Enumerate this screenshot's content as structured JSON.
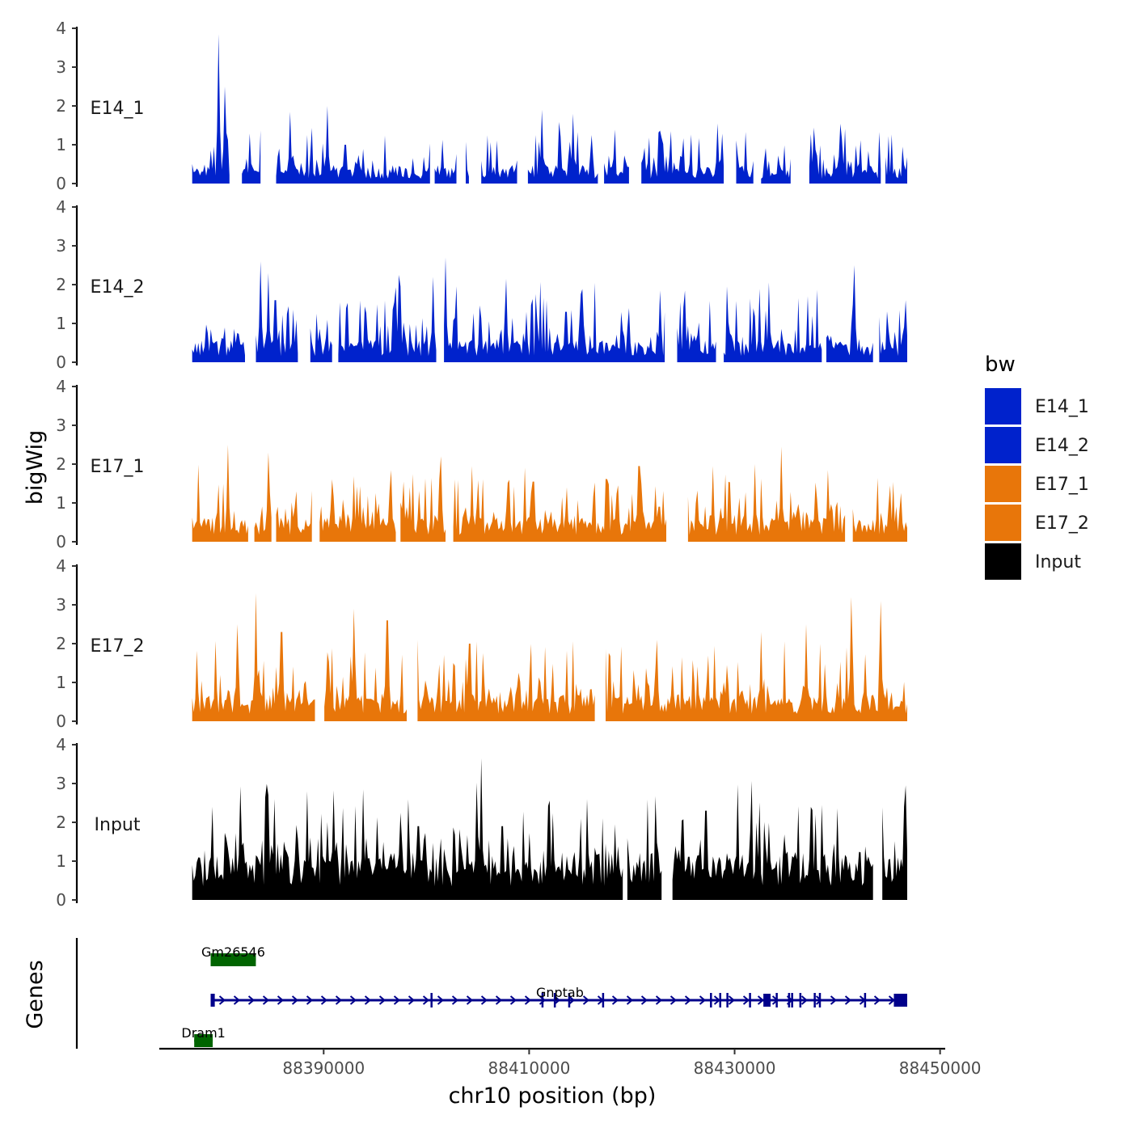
{
  "chart_data": {
    "type": "area",
    "title": "",
    "xlabel": "chr10 position (bp)",
    "ylabel": "bigWig",
    "genes_label": "Genes",
    "xlim": [
      88374000,
      88450500
    ],
    "x_data_range": [
      88377200,
      88446800
    ],
    "ylim": [
      0,
      4
    ],
    "yticks": [
      "0",
      "1",
      "2",
      "3",
      "4"
    ],
    "xticks": [
      {
        "value": 88390000,
        "label": "88390000"
      },
      {
        "value": 88410000,
        "label": "88410000"
      },
      {
        "value": 88430000,
        "label": "88430000"
      },
      {
        "value": 88450000,
        "label": "88450000"
      }
    ],
    "legend": {
      "title": "bw",
      "entries": [
        {
          "label": "E14_1",
          "color": "#0022CC"
        },
        {
          "label": "E14_2",
          "color": "#0022CC"
        },
        {
          "label": "E17_1",
          "color": "#E8760A"
        },
        {
          "label": "E17_2",
          "color": "#E8760A"
        },
        {
          "label": "Input",
          "color": "#000000"
        }
      ]
    },
    "series": [
      {
        "name": "E14_1",
        "color": "#0022CC",
        "seed": 11,
        "baseline": 0.35,
        "noise": 0.45,
        "gap_prob": 0.07,
        "peaks": [
          [
            88379800,
            3.85
          ],
          [
            88380400,
            2.5
          ],
          [
            88384200,
            1.95
          ],
          [
            88386700,
            1.85
          ],
          [
            88390400,
            2.0
          ],
          [
            88392100,
            1.0
          ],
          [
            88404800,
            1.6
          ],
          [
            88411200,
            1.9
          ],
          [
            88414300,
            1.8
          ],
          [
            88416100,
            1.25
          ],
          [
            88428400,
            1.55
          ],
          [
            88440500,
            1.15
          ]
        ]
      },
      {
        "name": "E14_2",
        "color": "#0022CC",
        "seed": 23,
        "baseline": 0.45,
        "noise": 0.6,
        "gap_prob": 0.07,
        "peaks": [
          [
            88383000,
            1.95
          ],
          [
            88383900,
            2.6
          ],
          [
            88384600,
            2.3
          ],
          [
            88385300,
            1.6
          ],
          [
            88392600,
            0.5
          ],
          [
            88397300,
            2.25
          ],
          [
            88400600,
            2.2
          ],
          [
            88401900,
            2.7
          ],
          [
            88407800,
            2.15
          ],
          [
            88413600,
            1.3
          ],
          [
            88422700,
            1.85
          ],
          [
            88433300,
            1.6
          ],
          [
            88441600,
            2.5
          ]
        ]
      },
      {
        "name": "E17_1",
        "color": "#E8760A",
        "seed": 37,
        "baseline": 0.5,
        "noise": 0.55,
        "gap_prob": 0.04,
        "peaks": [
          [
            88380700,
            2.5
          ],
          [
            88384600,
            2.3
          ],
          [
            88385200,
            2.0
          ],
          [
            88401400,
            2.2
          ],
          [
            88404400,
            1.95
          ],
          [
            88410400,
            1.55
          ],
          [
            88420700,
            1.95
          ],
          [
            88427900,
            1.95
          ],
          [
            88432000,
            2.0
          ],
          [
            88434600,
            2.45
          ],
          [
            88441300,
            1.45
          ]
        ]
      },
      {
        "name": "E17_2",
        "color": "#E8760A",
        "seed": 53,
        "baseline": 0.55,
        "noise": 0.6,
        "gap_prob": 0.04,
        "peaks": [
          [
            88381600,
            2.5
          ],
          [
            88383400,
            3.3
          ],
          [
            88385900,
            2.3
          ],
          [
            88392900,
            2.9
          ],
          [
            88396200,
            2.6
          ],
          [
            88404200,
            2.0
          ],
          [
            88422500,
            2.1
          ],
          [
            88432600,
            2.3
          ],
          [
            88437000,
            2.5
          ],
          [
            88441300,
            3.2
          ],
          [
            88444200,
            3.1
          ]
        ]
      },
      {
        "name": "Input",
        "color": "#000000",
        "seed": 71,
        "baseline": 1.0,
        "noise": 0.75,
        "gap_prob": 0.02,
        "peaks": [
          [
            88379200,
            2.4
          ],
          [
            88384600,
            2.7
          ],
          [
            88388400,
            2.8
          ],
          [
            88399200,
            1.9
          ],
          [
            88405300,
            3.65
          ],
          [
            88407400,
            1.9
          ],
          [
            88418300,
            1.95
          ],
          [
            88427200,
            2.3
          ],
          [
            88437900,
            2.2
          ],
          [
            88443700,
            2.65
          ]
        ]
      }
    ],
    "genes": [
      {
        "name": "Gm26546",
        "start": 88379000,
        "end": 88383400,
        "strand": "-",
        "color": "#006400",
        "row": 0,
        "exons": [
          [
            88379000,
            88383400
          ]
        ]
      },
      {
        "name": "Gnptab",
        "start": 88379000,
        "end": 88446800,
        "strand": "+",
        "color": "#00008B",
        "row": 1,
        "exons": [
          [
            88379000,
            88379400
          ],
          [
            88432800,
            88433500
          ],
          [
            88445500,
            88446800
          ]
        ],
        "ticks": [
          88400500,
          88411300,
          88412500,
          88413900,
          88417200,
          88427700,
          88428600,
          88429300,
          88431500,
          88434100,
          88435300,
          88435600,
          88436400,
          88437800,
          88438300,
          88442700
        ]
      },
      {
        "name": "Dram1",
        "start": 88377400,
        "end": 88379200,
        "strand": "-",
        "color": "#006400",
        "row": 2,
        "exons": [
          [
            88377400,
            88379200
          ]
        ]
      }
    ]
  }
}
